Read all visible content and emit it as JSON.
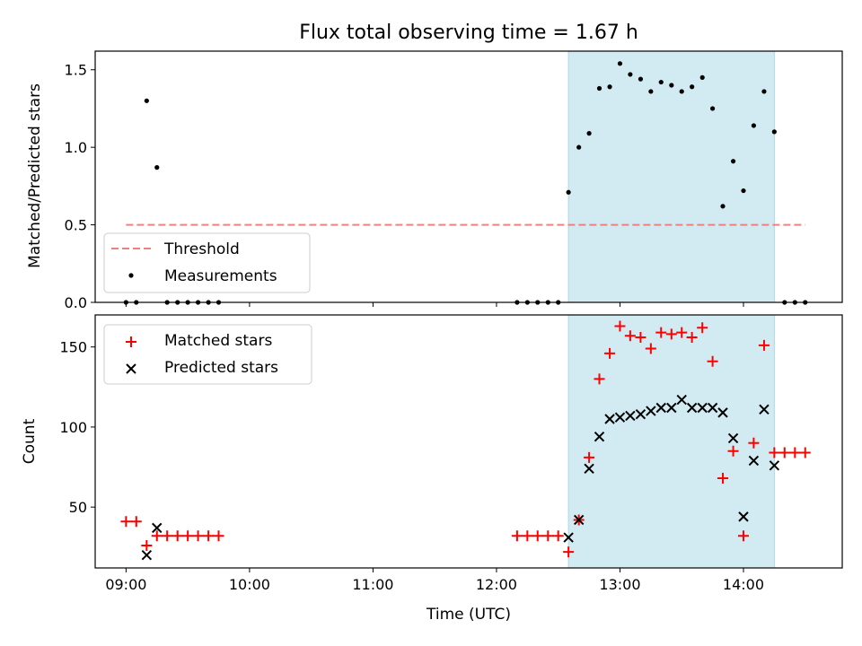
{
  "chart_data": [
    {
      "type": "scatter",
      "title": "Flux total observing time = 1.67 h",
      "ylabel": "Matched/Predicted stars",
      "xlabel": "",
      "xlim": [
        8.75,
        14.8
      ],
      "ylim": [
        0,
        1.62
      ],
      "yticks": [
        0.0,
        0.5,
        1.0,
        1.5
      ],
      "yticklabels": [
        "0.0",
        "0.5",
        "1.0",
        "1.5"
      ],
      "shaded_span": [
        12.583,
        14.25
      ],
      "colors": {
        "shade": "#add8e6",
        "threshold": "#f08080",
        "points": "#000000"
      },
      "threshold": {
        "name": "Threshold",
        "value": 0.5,
        "x_range": [
          9.0,
          14.5
        ]
      },
      "series": [
        {
          "name": "Measurements",
          "x": [
            9.0,
            9.083,
            9.167,
            9.25,
            9.333,
            9.417,
            9.5,
            9.583,
            9.667,
            9.75,
            12.167,
            12.25,
            12.333,
            12.417,
            12.5,
            12.583,
            12.667,
            12.75,
            12.833,
            12.917,
            13.0,
            13.083,
            13.167,
            13.25,
            13.333,
            13.417,
            13.5,
            13.583,
            13.667,
            13.75,
            13.833,
            13.917,
            14.0,
            14.083,
            14.167,
            14.25,
            14.333,
            14.417,
            14.5
          ],
          "y": [
            0,
            0,
            1.3,
            0.87,
            0,
            0,
            0,
            0,
            0,
            0,
            0,
            0,
            0,
            0,
            0,
            0.71,
            1.0,
            1.09,
            1.38,
            1.39,
            1.54,
            1.47,
            1.44,
            1.36,
            1.42,
            1.4,
            1.36,
            1.39,
            1.45,
            1.25,
            0.62,
            0.91,
            0.72,
            1.14,
            1.36,
            1.1,
            0,
            0,
            0
          ]
        }
      ],
      "legend": [
        "Threshold",
        "Measurements"
      ]
    },
    {
      "type": "scatter",
      "title": "",
      "ylabel": "Count",
      "xlabel": "Time (UTC)",
      "xlim": [
        8.75,
        14.8
      ],
      "ylim": [
        12,
        170
      ],
      "yticks": [
        50,
        100,
        150
      ],
      "yticklabels": [
        "50",
        "100",
        "150"
      ],
      "xticks": [
        9,
        10,
        11,
        12,
        13,
        14
      ],
      "xticklabels": [
        "09:00",
        "10:00",
        "11:00",
        "12:00",
        "13:00",
        "14:00"
      ],
      "shaded_span": [
        12.583,
        14.25
      ],
      "colors": {
        "shade": "#add8e6",
        "matched": "#ff0000",
        "predicted": "#000000"
      },
      "series": [
        {
          "name": "Matched stars",
          "marker": "plus",
          "x": [
            9.0,
            9.083,
            9.167,
            9.25,
            9.333,
            9.417,
            9.5,
            9.583,
            9.667,
            9.75,
            12.167,
            12.25,
            12.333,
            12.417,
            12.5,
            12.583,
            12.667,
            12.75,
            12.833,
            12.917,
            13.0,
            13.083,
            13.167,
            13.25,
            13.333,
            13.417,
            13.5,
            13.583,
            13.667,
            13.75,
            13.833,
            13.917,
            14.0,
            14.083,
            14.167,
            14.25,
            14.333,
            14.417,
            14.5
          ],
          "y": [
            41,
            41,
            26,
            32,
            32,
            32,
            32,
            32,
            32,
            32,
            32,
            32,
            32,
            32,
            32,
            22,
            42,
            81,
            130,
            146,
            163,
            157,
            156,
            149,
            159,
            158,
            159,
            156,
            162,
            141,
            68,
            85,
            32,
            90,
            151,
            84,
            84,
            84,
            84
          ]
        },
        {
          "name": "Predicted stars",
          "marker": "x",
          "x": [
            9.167,
            9.25,
            12.583,
            12.667,
            12.75,
            12.833,
            12.917,
            13.0,
            13.083,
            13.167,
            13.25,
            13.333,
            13.417,
            13.5,
            13.583,
            13.667,
            13.75,
            13.833,
            13.917,
            14.0,
            14.083,
            14.167,
            14.25
          ],
          "y": [
            20,
            37,
            31,
            42,
            74,
            94,
            105,
            106,
            107,
            108,
            110,
            112,
            112,
            117,
            112,
            112,
            112,
            109,
            93,
            44,
            79,
            111,
            76
          ]
        }
      ],
      "legend": [
        "Matched stars",
        "Predicted stars"
      ]
    }
  ]
}
